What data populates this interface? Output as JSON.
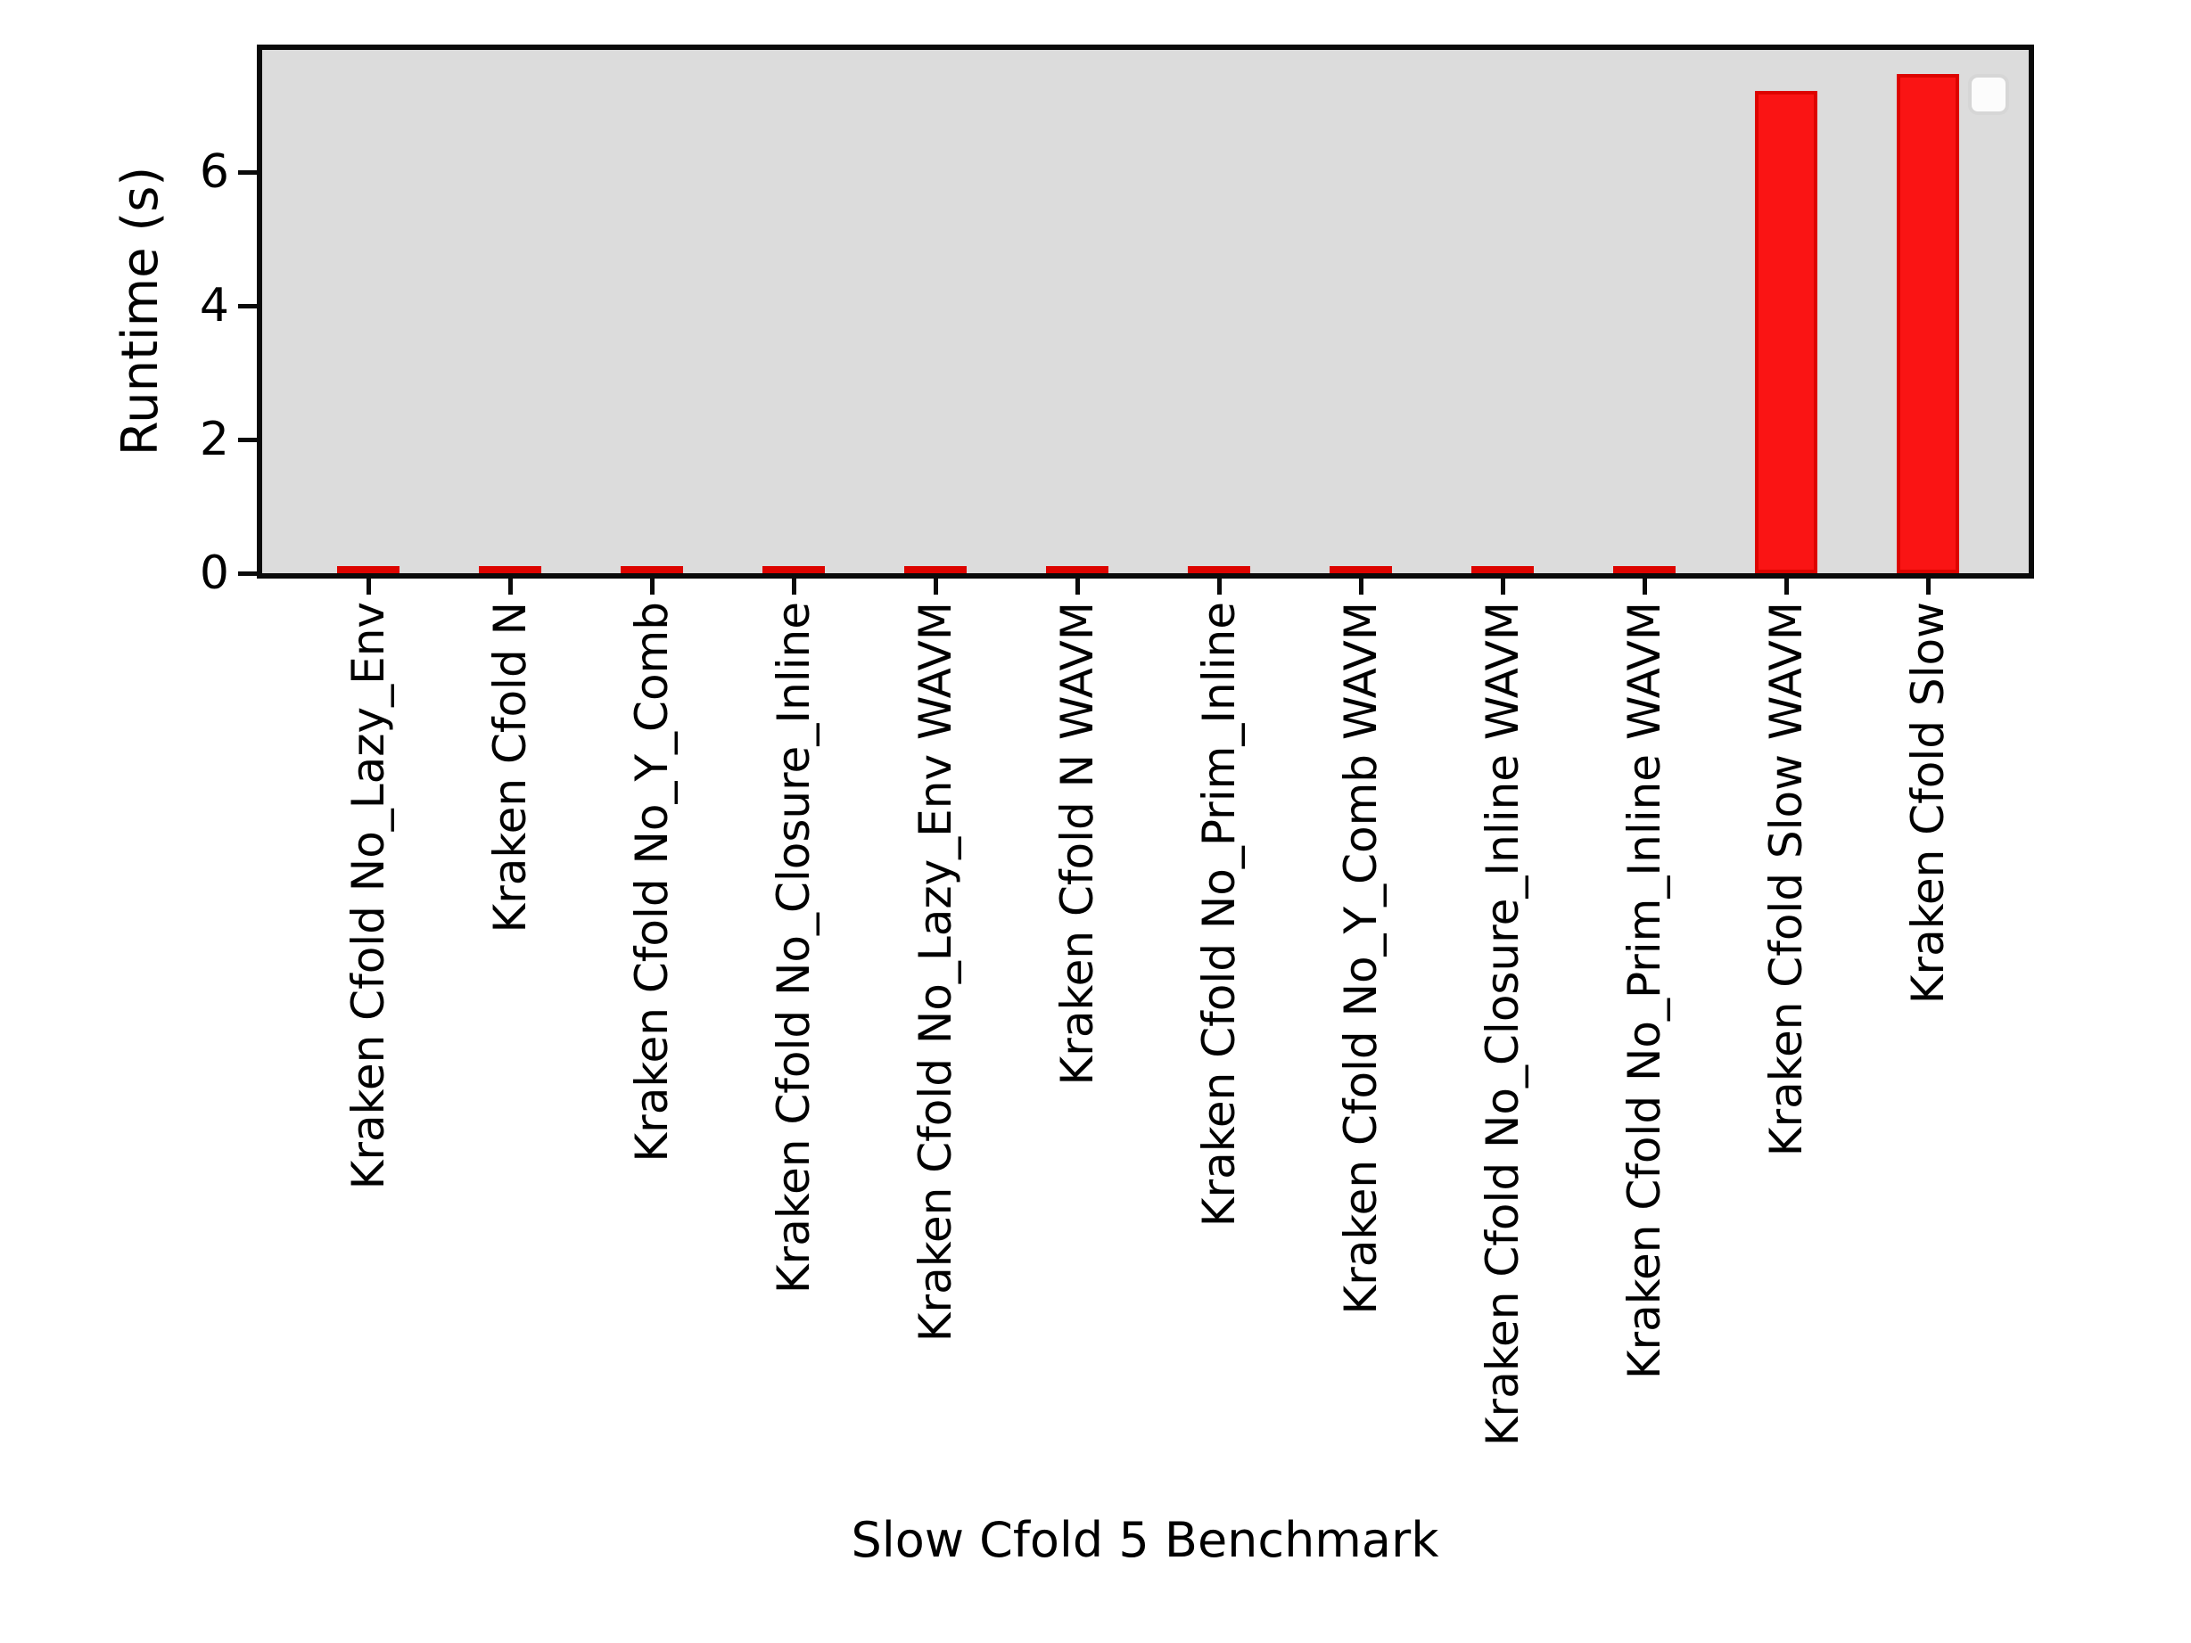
{
  "figure": {
    "background": "#ffffff"
  },
  "chart_data": {
    "type": "bar",
    "title": "",
    "xlabel": "Slow Cfold 5 Benchmark",
    "ylabel": "Runtime (s)",
    "categories": [
      "Kraken Cfold No_Lazy_Env",
      "Kraken Cfold N",
      "Kraken Cfold No_Y_Comb",
      "Kraken Cfold No_Closure_Inline",
      "Kraken Cfold No_Lazy_Env WAVM",
      "Kraken Cfold N WAVM",
      "Kraken Cfold No_Prim_Inline",
      "Kraken Cfold No_Y_Comb WAVM",
      "Kraken Cfold No_Closure_Inline WAVM",
      "Kraken Cfold No_Prim_Inline WAVM",
      "Kraken Cfold Slow WAVM",
      "Kraken Cfold Slow"
    ],
    "values": [
      0.04,
      0.04,
      0.04,
      0.05,
      0.06,
      0.06,
      0.05,
      0.06,
      0.07,
      0.09,
      7.21,
      7.47
    ],
    "yticks": [
      0,
      2,
      4,
      6
    ],
    "ytick_labels": [
      "0",
      "2",
      "4",
      "6"
    ],
    "ylim": [
      0,
      7.83
    ],
    "grid": false,
    "legend_position": "upper right",
    "legend_entries": [],
    "colors": {
      "bar_fill": "#fa1414",
      "bar_edge": "#dd0400",
      "plot_background": "#dcdcdc",
      "spine": "#0a0a0a",
      "text": "#000000",
      "legend_fill": "#fcfcfc",
      "legend_edge": "#d6d6d6"
    }
  }
}
